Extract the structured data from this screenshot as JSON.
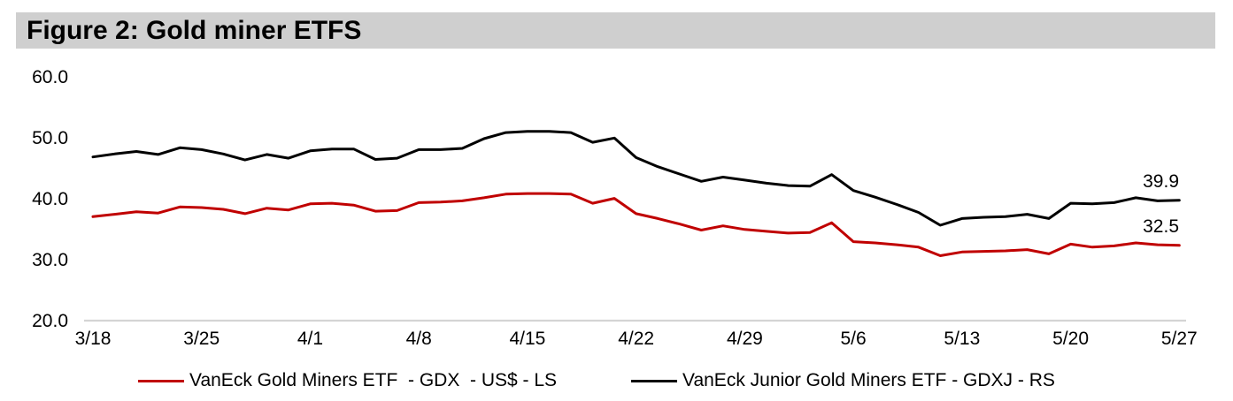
{
  "figure": {
    "title": "Figure 2: Gold miner ETFS"
  },
  "chart_data": {
    "type": "line",
    "title": "Figure 2: Gold miner ETFS",
    "x": [
      "3/18",
      "3/21",
      "3/22",
      "3/23",
      "3/24",
      "3/25",
      "3/28",
      "3/29",
      "3/30",
      "3/31",
      "4/1",
      "4/4",
      "4/5",
      "4/6",
      "4/7",
      "4/8",
      "4/11",
      "4/12",
      "4/13",
      "4/14",
      "4/15",
      "4/18",
      "4/19",
      "4/20",
      "4/21",
      "4/22",
      "4/25",
      "4/26",
      "4/27",
      "4/28",
      "4/29",
      "5/2",
      "5/3",
      "5/4",
      "5/5",
      "5/6",
      "5/9",
      "5/10",
      "5/11",
      "5/12",
      "5/13",
      "5/16",
      "5/17",
      "5/18",
      "5/19",
      "5/20",
      "5/23",
      "5/24",
      "5/25",
      "5/26",
      "5/27"
    ],
    "x_tick_labels": [
      "3/18",
      "3/25",
      "4/1",
      "4/8",
      "4/15",
      "4/22",
      "4/29",
      "5/6",
      "5/13",
      "5/20",
      "5/27"
    ],
    "y_tick_labels": [
      "60.0",
      "50.0",
      "40.0",
      "30.0",
      "20.0"
    ],
    "y_tick_values": [
      60,
      50,
      40,
      30,
      20
    ],
    "ylim": [
      20,
      60
    ],
    "grid": "baseline only",
    "legend_position": "bottom",
    "series": [
      {
        "name": "VanEck Gold Miners ETF  - GDX  - US$ - LS",
        "ticker": "GDX",
        "axis": "left",
        "color": "#c00000",
        "end_label": "32.5",
        "values": [
          37.2,
          37.6,
          38.0,
          37.8,
          38.8,
          38.7,
          38.4,
          37.7,
          38.6,
          38.3,
          39.3,
          39.4,
          39.1,
          38.1,
          38.2,
          39.5,
          39.6,
          39.8,
          40.3,
          40.9,
          41.0,
          41.0,
          40.9,
          39.4,
          40.2,
          37.7,
          36.9,
          36.0,
          35.0,
          35.7,
          35.1,
          34.8,
          34.5,
          34.6,
          36.2,
          33.1,
          32.9,
          32.6,
          32.2,
          30.8,
          31.4,
          31.5,
          31.6,
          31.8,
          31.1,
          32.7,
          32.2,
          32.4,
          32.9,
          32.6,
          32.5
        ]
      },
      {
        "name": "VanEck Junior Gold Miners ETF - GDXJ - RS",
        "ticker": "GDXJ",
        "axis": "right",
        "color": "#000000",
        "end_label": "39.9",
        "values": [
          47.0,
          47.5,
          47.9,
          47.4,
          48.5,
          48.2,
          47.5,
          46.5,
          47.4,
          46.8,
          48.0,
          48.3,
          48.3,
          46.6,
          46.8,
          48.2,
          48.2,
          48.4,
          50.0,
          51.0,
          51.2,
          51.2,
          51.0,
          49.4,
          50.1,
          46.9,
          45.4,
          44.2,
          43.0,
          43.7,
          43.2,
          42.7,
          42.3,
          42.2,
          44.1,
          41.5,
          40.4,
          39.2,
          37.9,
          35.8,
          36.9,
          37.1,
          37.2,
          37.6,
          36.9,
          39.4,
          39.3,
          39.5,
          40.3,
          39.8,
          39.9
        ]
      }
    ]
  }
}
